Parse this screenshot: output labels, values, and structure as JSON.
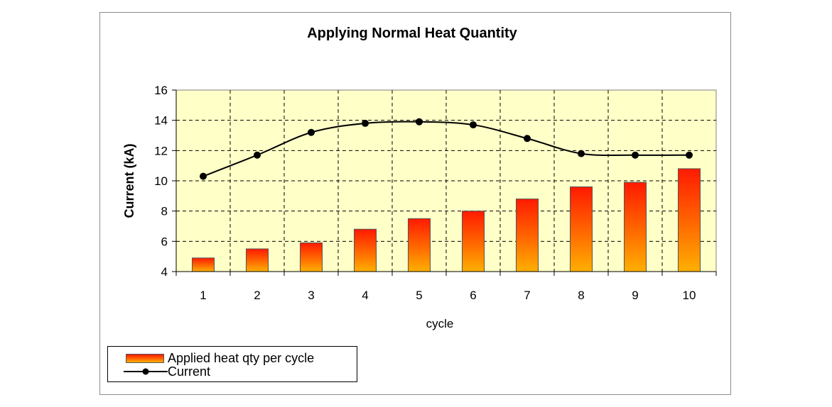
{
  "chart_data": {
    "type": "bar",
    "title": "Applying Normal Heat Quantity",
    "xlabel": "cycle",
    "ylabel": "Current (kA)",
    "categories": [
      "1",
      "2",
      "3",
      "4",
      "5",
      "6",
      "7",
      "8",
      "9",
      "10"
    ],
    "ylim": [
      4,
      16
    ],
    "yticks": [
      "4",
      "6",
      "8",
      "10",
      "12",
      "14",
      "16"
    ],
    "grid": true,
    "legend_position": "bottom-left",
    "series": [
      {
        "name": "Applied heat qty per cycle",
        "type": "bar",
        "values": [
          4.9,
          5.5,
          5.9,
          6.8,
          7.5,
          8.0,
          8.8,
          9.6,
          9.9,
          10.8
        ]
      },
      {
        "name": "Current",
        "type": "line",
        "values": [
          10.3,
          11.7,
          13.2,
          13.8,
          13.9,
          13.7,
          12.8,
          11.8,
          11.7,
          11.7
        ]
      }
    ],
    "colors": {
      "plot_background": "#ffffc8",
      "bar_top": "#ff1a00",
      "bar_bottom": "#ffb000",
      "line": "#000000",
      "grid": "#000000"
    }
  }
}
